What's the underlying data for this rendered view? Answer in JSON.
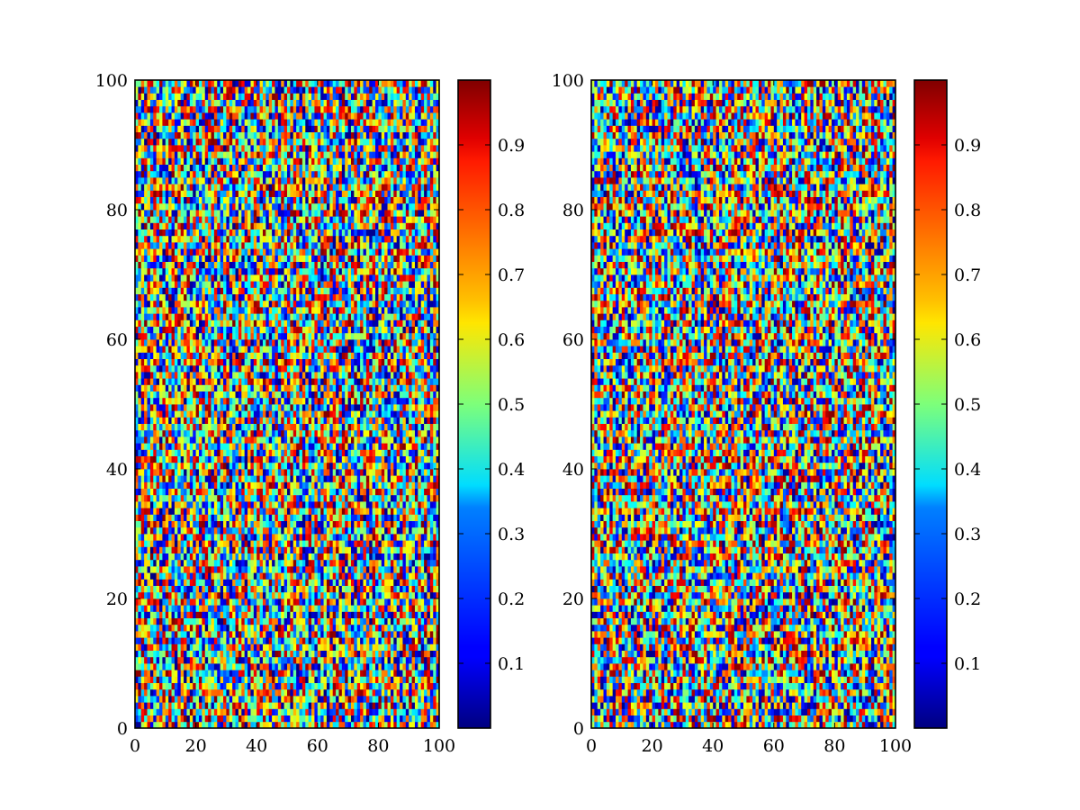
{
  "chart_data": [
    {
      "type": "heatmap",
      "title": "",
      "xlabel": "",
      "ylabel": "",
      "grid_size": [
        100,
        100
      ],
      "xlim": [
        0,
        100
      ],
      "ylim": [
        0,
        100
      ],
      "xticks": [
        "0",
        "20",
        "40",
        "60",
        "80",
        "100"
      ],
      "yticks": [
        "0",
        "20",
        "40",
        "60",
        "80",
        "100"
      ],
      "colormap": "jet",
      "colorbar": {
        "range": [
          0,
          1
        ],
        "ticks": [
          "0.1",
          "0.2",
          "0.3",
          "0.4",
          "0.5",
          "0.6",
          "0.7",
          "0.8",
          "0.9"
        ]
      },
      "values": "uniform random values in [0, 1) on a 100 x 100 grid (individual cell values not legible)"
    },
    {
      "type": "heatmap",
      "title": "",
      "xlabel": "",
      "ylabel": "",
      "grid_size": [
        100,
        100
      ],
      "xlim": [
        0,
        100
      ],
      "ylim": [
        0,
        100
      ],
      "xticks": [
        "0",
        "20",
        "40",
        "60",
        "80",
        "100"
      ],
      "yticks": [
        "0",
        "20",
        "40",
        "60",
        "80",
        "100"
      ],
      "colormap": "jet",
      "colorbar": {
        "range": [
          0,
          1
        ],
        "ticks": [
          "0.1",
          "0.2",
          "0.3",
          "0.4",
          "0.5",
          "0.6",
          "0.7",
          "0.8",
          "0.9"
        ]
      },
      "values": "uniform random values in [0, 1) on a 100 x 100 grid (individual cell values not legible)"
    }
  ]
}
